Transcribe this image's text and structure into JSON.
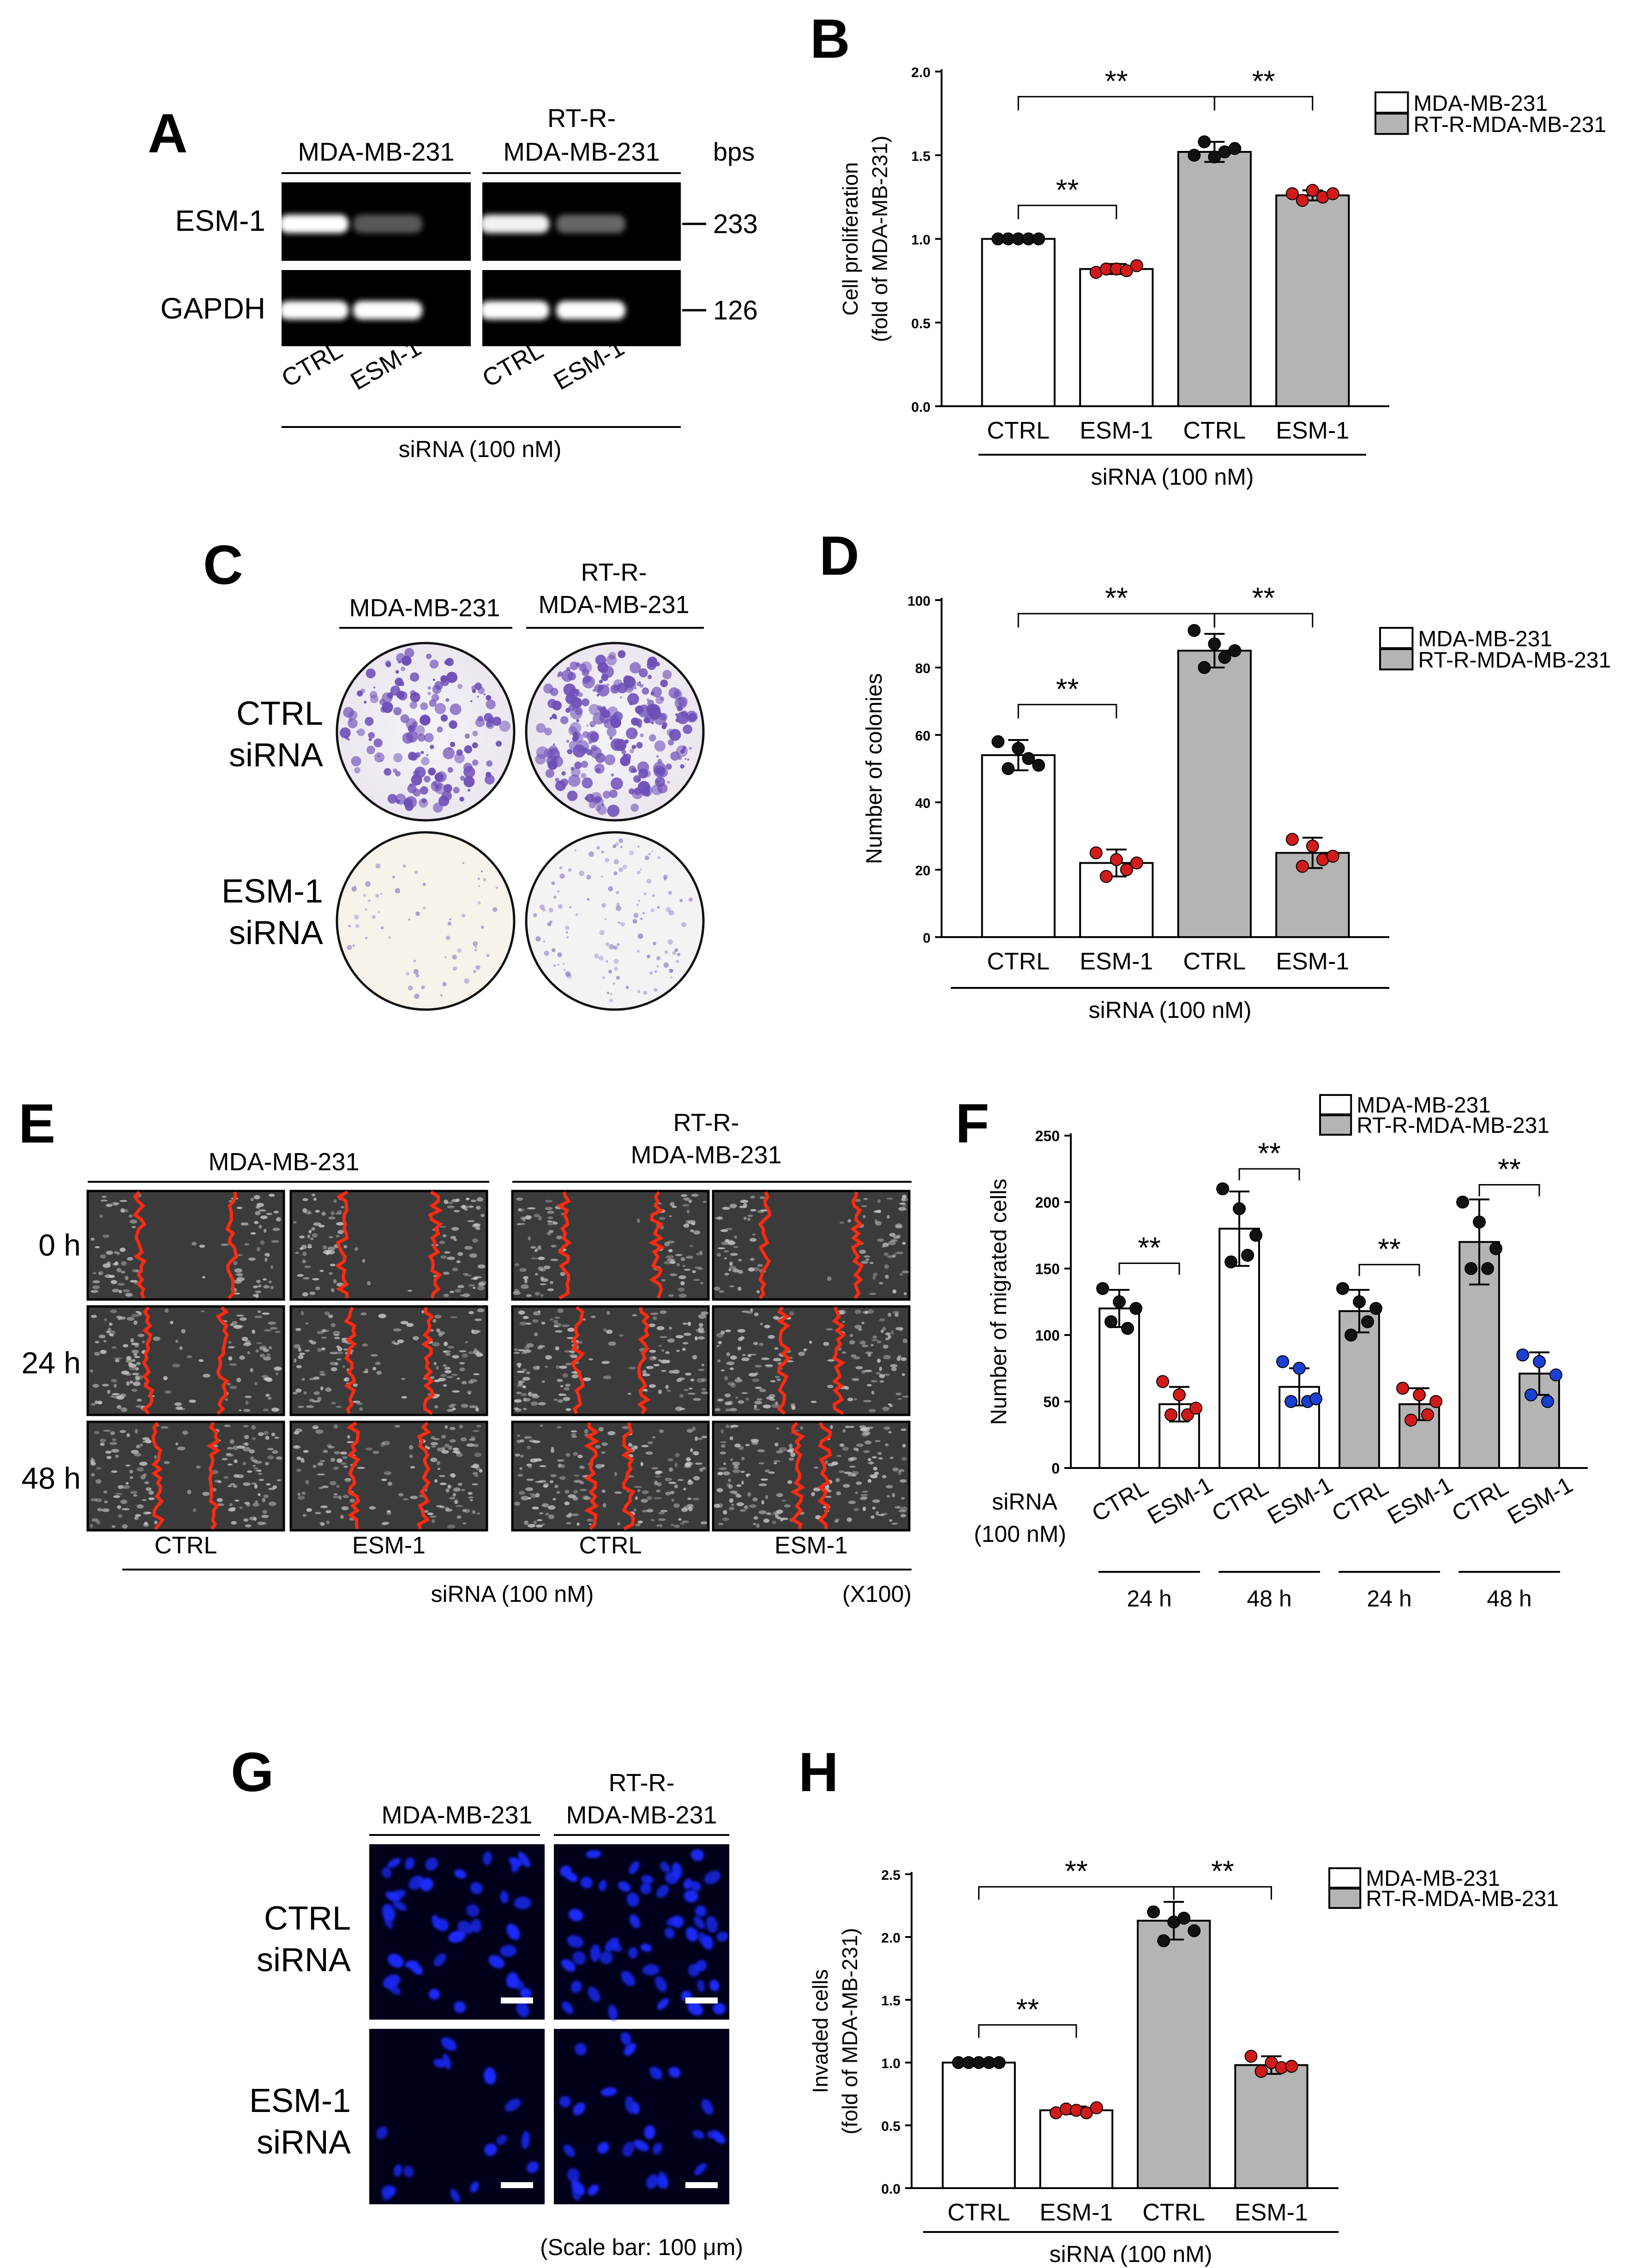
{
  "colors": {
    "white_bar": "#ffffff",
    "gray_bar": "#b4b4b4",
    "dot_black": "#111111",
    "dot_red": "#d11a1a",
    "dot_blue": "#1a3fd1",
    "wound_edge": "#ff2a10",
    "nuclei": "#1b2bff",
    "gel_bg": "#000000",
    "crystal_violet": "#6e4fb8"
  },
  "common": {
    "legend_white": "MDA-MB-231",
    "legend_gray": "RT-R-MDA-MB-231",
    "sirna_label": "siRNA (100 nM)",
    "sig": "**",
    "ctrl": "CTRL",
    "esm1": "ESM-1"
  },
  "panelA": {
    "letter": "A",
    "col1": "MDA-MB-231",
    "col2a": "RT-R-",
    "col2b": "MDA-MB-231",
    "bps": "bps",
    "row1": "ESM-1",
    "row2": "GAPDH",
    "size1": "233",
    "size2": "126",
    "lanes": [
      "CTRL",
      "ESM-1",
      "CTRL",
      "ESM-1"
    ],
    "band_intensity": [
      [
        1.0,
        0.35,
        0.95,
        0.4
      ],
      [
        1.0,
        1.0,
        1.0,
        1.0
      ]
    ]
  },
  "panelC": {
    "letter": "C",
    "col1": "MDA-MB-231",
    "col2a": "RT-R-",
    "col2b": "MDA-MB-231",
    "row1a": "CTRL",
    "row1b": "siRNA",
    "row2a": "ESM-1",
    "row2b": "siRNA"
  },
  "panelE": {
    "letter": "E",
    "col1": "MDA-MB-231",
    "col2a": "RT-R-",
    "col2b": "MDA-MB-231",
    "rows": [
      "0 h",
      "24 h",
      "48 h"
    ],
    "lanes": [
      "CTRL",
      "ESM-1",
      "CTRL",
      "ESM-1"
    ],
    "magnification": "(X100)"
  },
  "panelG": {
    "letter": "G",
    "col1": "MDA-MB-231",
    "col2a": "RT-R-",
    "col2b": "MDA-MB-231",
    "row1a": "CTRL",
    "row1b": "siRNA",
    "row2a": "ESM-1",
    "row2b": "siRNA",
    "scale": "(Scale bar: 100 μm)"
  },
  "chart_data": [
    {
      "panel": "B",
      "type": "bar",
      "ylabel_line1": "Cell proliferation",
      "ylabel_line2": "(fold of MDA-MB-231)",
      "categories": [
        "CTRL",
        "ESM-1",
        "CTRL",
        "ESM-1"
      ],
      "groups": [
        "MDA-MB-231",
        "MDA-MB-231",
        "RT-R-MDA-MB-231",
        "RT-R-MDA-MB-231"
      ],
      "values": [
        1.0,
        0.82,
        1.52,
        1.26
      ],
      "errors": [
        0.0,
        0.03,
        0.06,
        0.03
      ],
      "points": [
        [
          1.0,
          1.0,
          1.0,
          1.0,
          1.0
        ],
        [
          0.8,
          0.82,
          0.82,
          0.81,
          0.84
        ],
        [
          1.5,
          1.58,
          1.49,
          1.52,
          1.54
        ],
        [
          1.27,
          1.23,
          1.29,
          1.25,
          1.27
        ]
      ],
      "ylim": [
        0,
        2.0
      ],
      "yticks": [
        "0.0",
        "0.5",
        "1.0",
        "1.5",
        "2.0"
      ]
    },
    {
      "panel": "D",
      "type": "bar",
      "ylabel": "Number of colonies",
      "categories": [
        "CTRL",
        "ESM-1",
        "CTRL",
        "ESM-1"
      ],
      "groups": [
        "MDA-MB-231",
        "MDA-MB-231",
        "RT-R-MDA-MB-231",
        "RT-R-MDA-MB-231"
      ],
      "values": [
        54,
        22,
        85,
        25
      ],
      "errors": [
        4.5,
        4,
        5,
        4.5
      ],
      "points": [
        [
          58,
          50,
          56,
          53,
          51
        ],
        [
          25,
          18,
          23,
          20,
          22
        ],
        [
          91,
          80,
          87,
          83,
          85
        ],
        [
          29,
          21,
          27,
          23,
          24
        ]
      ],
      "ylim": [
        0,
        100
      ],
      "yticks": [
        "0",
        "20",
        "40",
        "60",
        "80",
        "100"
      ]
    },
    {
      "panel": "F",
      "type": "bar",
      "ylabel": "Number of migrated cells",
      "row_label_a": "siRNA",
      "row_label_b": "(100 nM)",
      "categories": [
        "CTRL",
        "ESM-1",
        "CTRL",
        "ESM-1",
        "CTRL",
        "ESM-1",
        "CTRL",
        "ESM-1"
      ],
      "time_groups": [
        "24 h",
        "48 h",
        "24 h",
        "48 h"
      ],
      "values": [
        120,
        48,
        180,
        61,
        118,
        48,
        170,
        71
      ],
      "errors": [
        14,
        13,
        28,
        14,
        16,
        12,
        32,
        16
      ],
      "points": [
        [
          135,
          110,
          125,
          105,
          120
        ],
        [
          65,
          40,
          55,
          40,
          45
        ],
        [
          210,
          155,
          195,
          160,
          175
        ],
        [
          80,
          50,
          75,
          50,
          52
        ],
        [
          135,
          100,
          125,
          110,
          120
        ],
        [
          60,
          36,
          55,
          40,
          50
        ],
        [
          200,
          150,
          185,
          150,
          165
        ],
        [
          85,
          55,
          80,
          50,
          70
        ]
      ],
      "point_colors": [
        "black",
        "red",
        "black",
        "blue",
        "black",
        "red",
        "black",
        "blue"
      ],
      "ylim": [
        0,
        250
      ],
      "yticks": [
        "0",
        "50",
        "100",
        "150",
        "200",
        "250"
      ]
    },
    {
      "panel": "H",
      "type": "bar",
      "ylabel_line1": "Invaded cells",
      "ylabel_line2": "(fold of MDA-MB-231)",
      "categories": [
        "CTRL",
        "ESM-1",
        "CTRL",
        "ESM-1"
      ],
      "groups": [
        "MDA-MB-231",
        "MDA-MB-231",
        "RT-R-MDA-MB-231",
        "RT-R-MDA-MB-231"
      ],
      "values": [
        1.0,
        0.62,
        2.13,
        0.98
      ],
      "errors": [
        0.0,
        0.03,
        0.15,
        0.07
      ],
      "points": [
        [
          1.0,
          1.0,
          1.0,
          1.0,
          1.0
        ],
        [
          0.6,
          0.63,
          0.62,
          0.6,
          0.64
        ],
        [
          2.2,
          1.97,
          2.12,
          2.15,
          2.05
        ],
        [
          1.05,
          0.93,
          1.0,
          0.96,
          0.97
        ]
      ],
      "ylim": [
        0,
        2.5
      ],
      "yticks": [
        "0.0",
        "0.5",
        "1.0",
        "1.5",
        "2.0",
        "2.5"
      ]
    }
  ]
}
